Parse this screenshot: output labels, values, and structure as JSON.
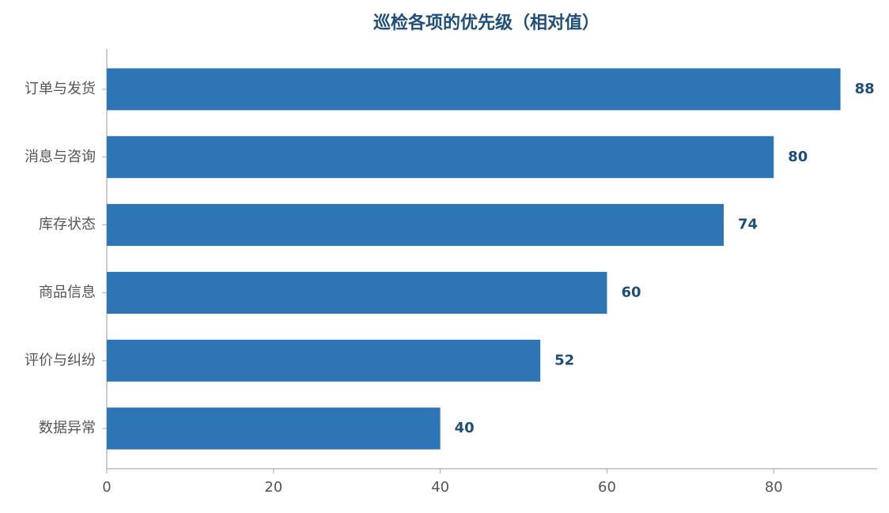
{
  "chart_data": {
    "type": "bar",
    "orientation": "horizontal",
    "title": "巡检各项的优先级（相对值）",
    "categories": [
      "订单与发货",
      "消息与咨询",
      "库存状态",
      "商品信息",
      "评价与纠纷",
      "数据异常"
    ],
    "values": [
      88,
      80,
      74,
      60,
      52,
      40
    ],
    "color": "#2e75b6",
    "xlim": [
      0,
      92.4
    ],
    "xticks": [
      0,
      20,
      40,
      60,
      80
    ]
  }
}
